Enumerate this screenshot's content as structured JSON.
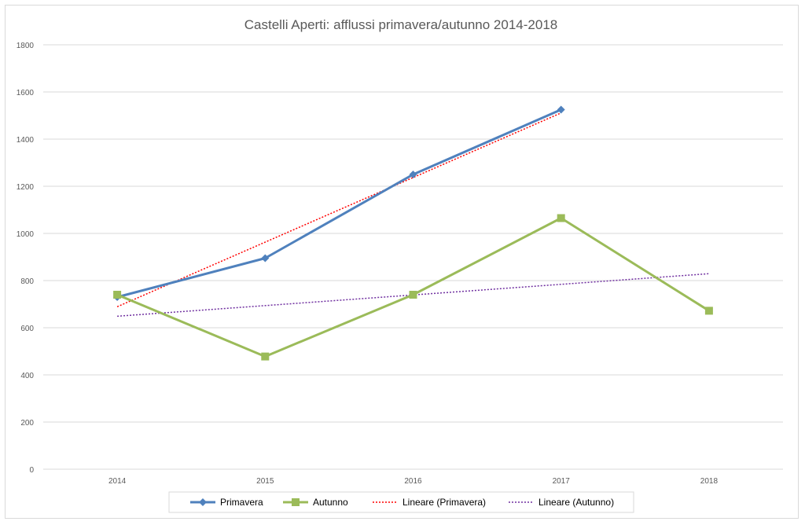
{
  "chart_data": {
    "type": "line",
    "title": "Castelli Aperti: afflussi primavera/autunno 2014-2018",
    "categories": [
      "2014",
      "2015",
      "2016",
      "2017",
      "2018"
    ],
    "y_ticks": [
      "0",
      "200",
      "400",
      "600",
      "800",
      "1000",
      "1200",
      "1400",
      "1600",
      "1800"
    ],
    "ylim": [
      0,
      1800
    ],
    "grid": true,
    "legend_position": "bottom",
    "series": [
      {
        "name": "Primavera",
        "values": [
          730,
          895,
          1250,
          1525,
          null
        ],
        "color": "#4f81bd",
        "marker": "diamond"
      },
      {
        "name": "Autunno",
        "values": [
          740,
          478,
          740,
          1065,
          672
        ],
        "color": "#9bbb59",
        "marker": "square"
      }
    ],
    "trendlines": [
      {
        "name": "Lineare (Primavera)",
        "type": "linear",
        "of": "Primavera",
        "color": "#ff0000",
        "style": "dotted"
      },
      {
        "name": "Lineare (Autunno)",
        "type": "linear",
        "of": "Autunno",
        "color": "#7030a0",
        "style": "dotted"
      }
    ]
  }
}
